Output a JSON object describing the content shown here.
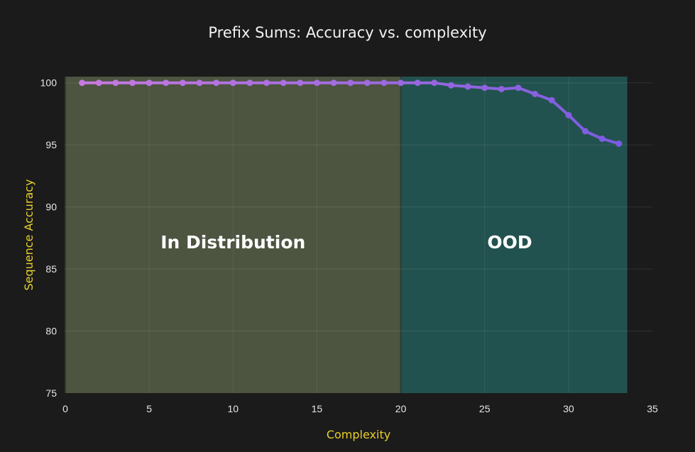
{
  "chart_data": {
    "type": "line",
    "title": "Prefix Sums: Accuracy vs. complexity",
    "xlabel": "Complexity",
    "ylabel": "Sequence Accuracy",
    "xlim": [
      0,
      35
    ],
    "ylim": [
      75,
      100.5
    ],
    "x_ticks": [
      "0",
      "5",
      "10",
      "15",
      "20",
      "25",
      "30",
      "35"
    ],
    "y_ticks": [
      "75",
      "80",
      "85",
      "90",
      "95",
      "100"
    ],
    "grid": true,
    "regions": [
      {
        "label": "In Distribution",
        "x_range": [
          0,
          20
        ],
        "color": "#4d5440"
      },
      {
        "label": "OOD",
        "x_range": [
          20,
          33.5
        ],
        "color": "#22524f"
      }
    ],
    "series": [
      {
        "x": [
          1,
          2,
          3,
          4,
          5,
          6,
          7,
          8,
          9,
          10,
          11,
          12,
          13,
          14,
          15,
          16,
          17,
          18,
          19,
          20,
          21,
          22,
          23,
          24,
          25,
          26,
          27,
          28,
          29,
          30,
          31,
          32,
          33
        ],
        "values": [
          100,
          100,
          100,
          100,
          100,
          100,
          100,
          100,
          100,
          100,
          100,
          100,
          100,
          100,
          100,
          100,
          100,
          100,
          100,
          100,
          100,
          100,
          99.8,
          99.7,
          99.6,
          99.5,
          99.6,
          99.1,
          98.6,
          97.4,
          96.1,
          95.5,
          95.1
        ],
        "color_start": "#c77ae0",
        "color_end": "#7b5ce0"
      }
    ]
  }
}
